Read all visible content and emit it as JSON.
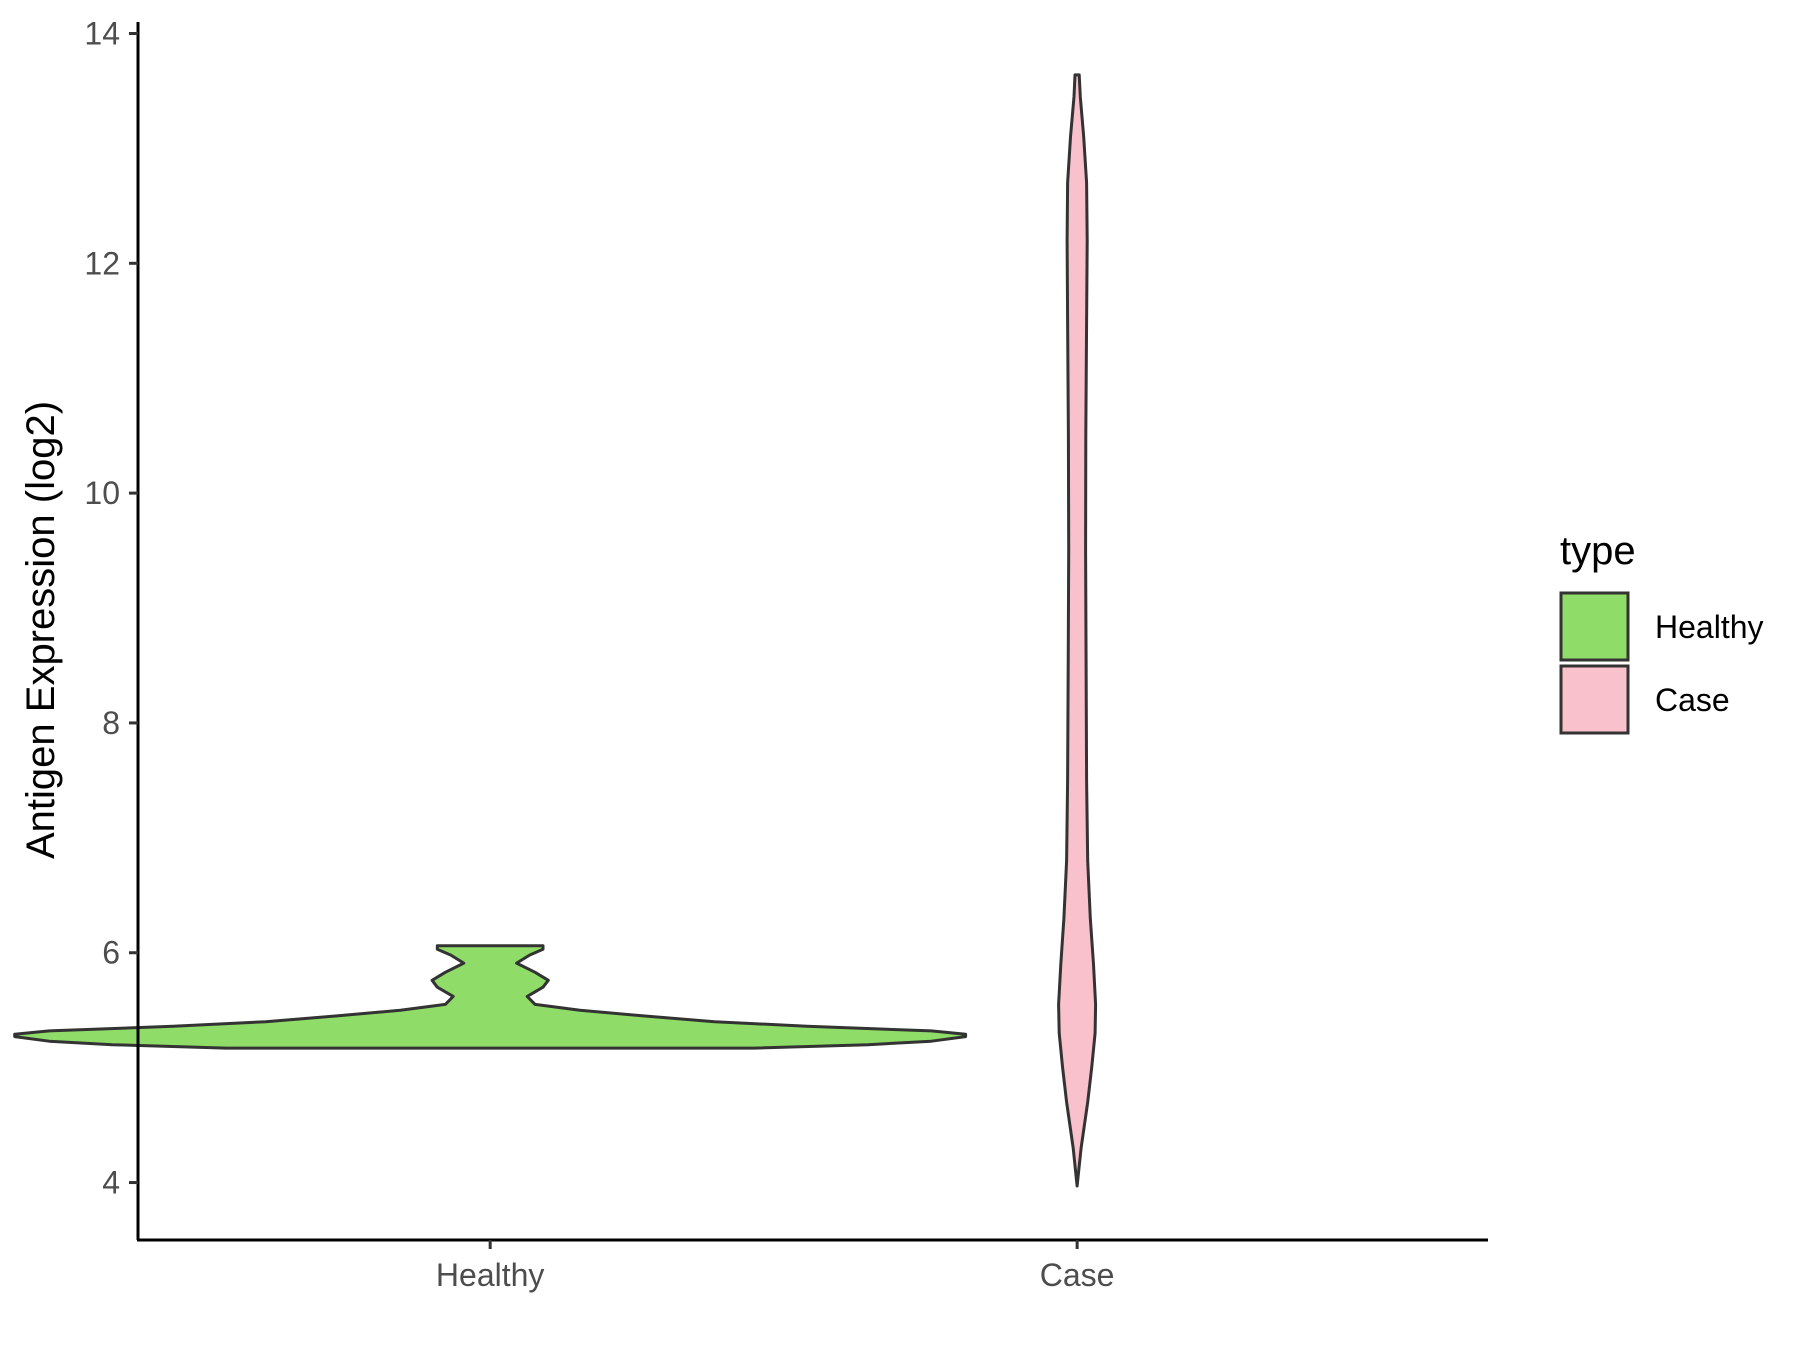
{
  "chart_data": {
    "type": "violin",
    "ylabel": "Antigen Expression (log2)",
    "xlabel": "",
    "categories": [
      "Healthy",
      "Case"
    ],
    "ylim": [
      3.5,
      14.1
    ],
    "yticks": [
      4,
      6,
      8,
      10,
      12,
      14
    ],
    "legend": {
      "title": "type",
      "position": "right",
      "items": [
        {
          "label": "Healthy",
          "color": "#90dc68"
        },
        {
          "label": "Case",
          "color": "#f8c1cc"
        }
      ]
    },
    "grid": false,
    "series": [
      {
        "name": "Healthy",
        "color": "#90dc68",
        "min": 5.17,
        "max": 6.06,
        "density_profile": [
          {
            "y": 5.17,
            "half_width": 1.0
          },
          {
            "y": 5.2,
            "half_width": 1.43
          },
          {
            "y": 5.23,
            "half_width": 1.67
          },
          {
            "y": 5.27,
            "half_width": 1.8
          },
          {
            "y": 5.29,
            "half_width": 1.8
          },
          {
            "y": 5.32,
            "half_width": 1.67
          },
          {
            "y": 5.36,
            "half_width": 1.2
          },
          {
            "y": 5.4,
            "half_width": 0.85
          },
          {
            "y": 5.45,
            "half_width": 0.58
          },
          {
            "y": 5.5,
            "half_width": 0.34
          },
          {
            "y": 5.55,
            "half_width": 0.17
          },
          {
            "y": 5.62,
            "half_width": 0.14
          },
          {
            "y": 5.7,
            "half_width": 0.2
          },
          {
            "y": 5.76,
            "half_width": 0.22
          },
          {
            "y": 5.83,
            "half_width": 0.17
          },
          {
            "y": 5.91,
            "half_width": 0.1
          },
          {
            "y": 5.98,
            "half_width": 0.15
          },
          {
            "y": 6.03,
            "half_width": 0.2
          },
          {
            "y": 6.06,
            "half_width": 0.2
          }
        ]
      },
      {
        "name": "Case",
        "color": "#f8c1cc",
        "min": 3.97,
        "max": 13.64,
        "density_profile": [
          {
            "y": 3.97,
            "half_width": 0.0
          },
          {
            "y": 4.3,
            "half_width": 0.015
          },
          {
            "y": 4.7,
            "half_width": 0.04
          },
          {
            "y": 5.0,
            "half_width": 0.055
          },
          {
            "y": 5.3,
            "half_width": 0.068
          },
          {
            "y": 5.55,
            "half_width": 0.07
          },
          {
            "y": 5.9,
            "half_width": 0.062
          },
          {
            "y": 6.3,
            "half_width": 0.05
          },
          {
            "y": 6.8,
            "half_width": 0.04
          },
          {
            "y": 7.5,
            "half_width": 0.036
          },
          {
            "y": 8.5,
            "half_width": 0.034
          },
          {
            "y": 9.5,
            "half_width": 0.032
          },
          {
            "y": 10.5,
            "half_width": 0.033
          },
          {
            "y": 11.5,
            "half_width": 0.036
          },
          {
            "y": 12.2,
            "half_width": 0.038
          },
          {
            "y": 12.7,
            "half_width": 0.036
          },
          {
            "y": 13.1,
            "half_width": 0.025
          },
          {
            "y": 13.45,
            "half_width": 0.012
          },
          {
            "y": 13.64,
            "half_width": 0.008
          }
        ]
      }
    ]
  }
}
